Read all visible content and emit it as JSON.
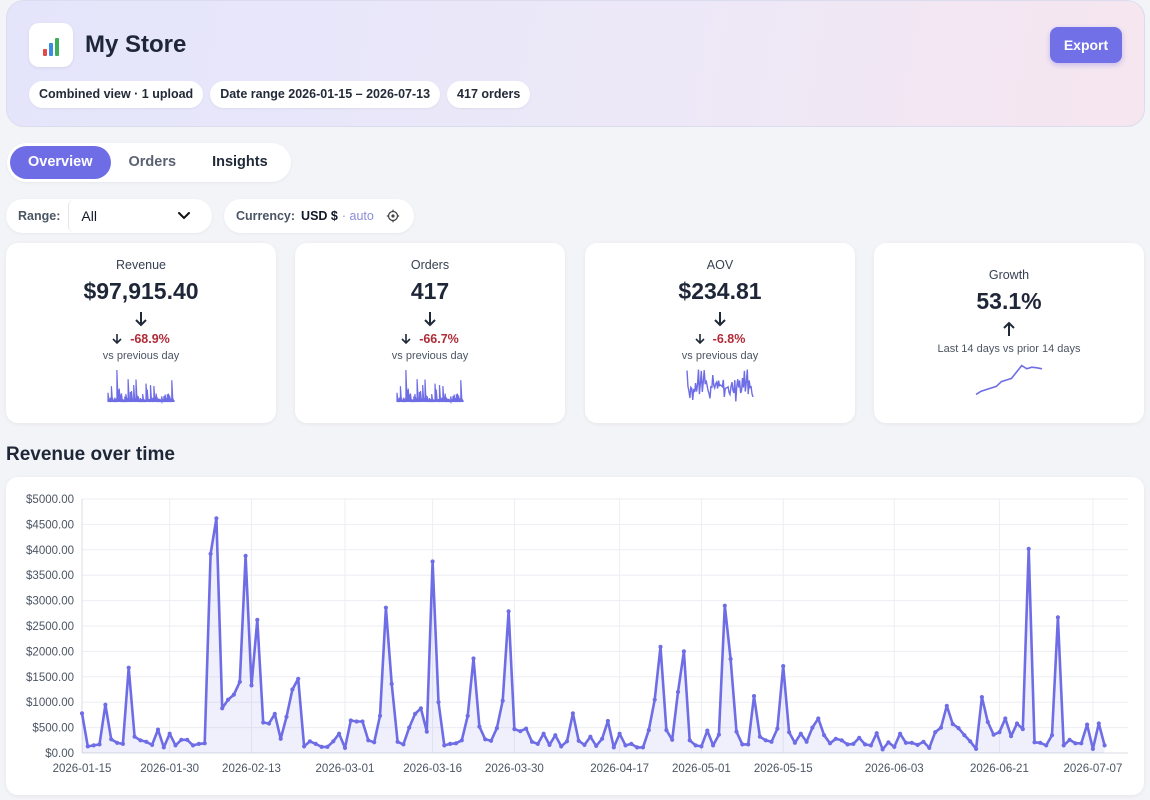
{
  "header": {
    "title": "My Store",
    "logo_icon": "bar-chart-icon",
    "export_label": "Export",
    "chips": [
      "Combined view · 1 upload",
      "Date range 2026-01-15 – 2026-07-13",
      "417 orders"
    ]
  },
  "tabs": [
    {
      "label": "Overview",
      "active": true
    },
    {
      "label": "Orders",
      "active": false
    },
    {
      "label": "Insights",
      "active": false
    }
  ],
  "filters": {
    "range_label": "Range:",
    "range_value": "All",
    "currency_label": "Currency:",
    "currency_value": "USD $",
    "currency_mode": "· auto"
  },
  "kpis": [
    {
      "label": "Revenue",
      "value": "$97,915.40",
      "direction": "down",
      "change": "-68.9%",
      "sub": "vs previous day"
    },
    {
      "label": "Orders",
      "value": "417",
      "direction": "down",
      "change": "-66.7%",
      "sub": "vs previous day"
    },
    {
      "label": "AOV",
      "value": "$234.81",
      "direction": "down",
      "change": "-6.8%",
      "sub": "vs previous day"
    },
    {
      "label": "Growth",
      "value": "53.1%",
      "direction": "up",
      "sub": "Last 14 days vs prior 14 days"
    }
  ],
  "colors": {
    "accent": "#6e6de6",
    "negative": "#b02a37"
  },
  "section_title": "Revenue over time",
  "chart_data": {
    "type": "area",
    "ylim": [
      0,
      5000
    ],
    "y_ticks": [
      "$5000.00",
      "$4500.00",
      "$4000.00",
      "$3500.00",
      "$3000.00",
      "$2500.00",
      "$2000.00",
      "$1500.00",
      "$1000.00",
      "$500.00",
      "$0.00"
    ],
    "x_tick_labels": [
      "2026-01-15",
      "2026-01-30",
      "2026-02-13",
      "2026-03-01",
      "2026-03-16",
      "2026-03-30",
      "2026-04-17",
      "2026-05-01",
      "2026-05-15",
      "2026-06-03",
      "2026-06-21",
      "2026-07-07"
    ],
    "x_tick_index": [
      0,
      15,
      29,
      45,
      60,
      74,
      92,
      106,
      120,
      139,
      157,
      173
    ],
    "x_range_index": [
      0,
      179
    ],
    "grid": true,
    "series": [
      {
        "values": [
          780,
          130,
          150,
          170,
          950,
          270,
          200,
          180,
          1680,
          320,
          250,
          220,
          160,
          460,
          110,
          380,
          150,
          260,
          260,
          150,
          180,
          190,
          3920,
          4620,
          880,
          1050,
          1150,
          1400,
          3880,
          1330,
          2620,
          600,
          580,
          770,
          280,
          710,
          1250,
          1460,
          130,
          230,
          180,
          120,
          120,
          230,
          380,
          100,
          640,
          620,
          620,
          250,
          210,
          730,
          2860,
          1360,
          220,
          170,
          500,
          770,
          880,
          420,
          3770,
          1000,
          150,
          180,
          190,
          250,
          730,
          1860,
          520,
          270,
          240,
          490,
          1030,
          2790,
          470,
          430,
          480,
          220,
          180,
          380,
          160,
          350,
          130,
          230,
          780,
          240,
          160,
          320,
          140,
          280,
          630,
          110,
          380,
          150,
          180,
          110,
          110,
          450,
          1050,
          2090,
          450,
          260,
          1200,
          2000,
          250,
          150,
          130,
          440,
          150,
          360,
          2900,
          1850,
          420,
          170,
          170,
          1120,
          320,
          250,
          220,
          480,
          1710,
          410,
          200,
          380,
          220,
          500,
          680,
          350,
          190,
          280,
          250,
          170,
          180,
          300,
          170,
          150,
          390,
          70,
          210,
          120,
          380,
          200,
          200,
          160,
          220,
          100,
          410,
          500,
          930,
          570,
          490,
          350,
          230,
          80,
          1100,
          610,
          360,
          410,
          680,
          330,
          580,
          470,
          4020,
          210,
          200,
          150,
          350,
          2670,
          150,
          260,
          190,
          190,
          560,
          80,
          580,
          150
        ]
      }
    ]
  }
}
